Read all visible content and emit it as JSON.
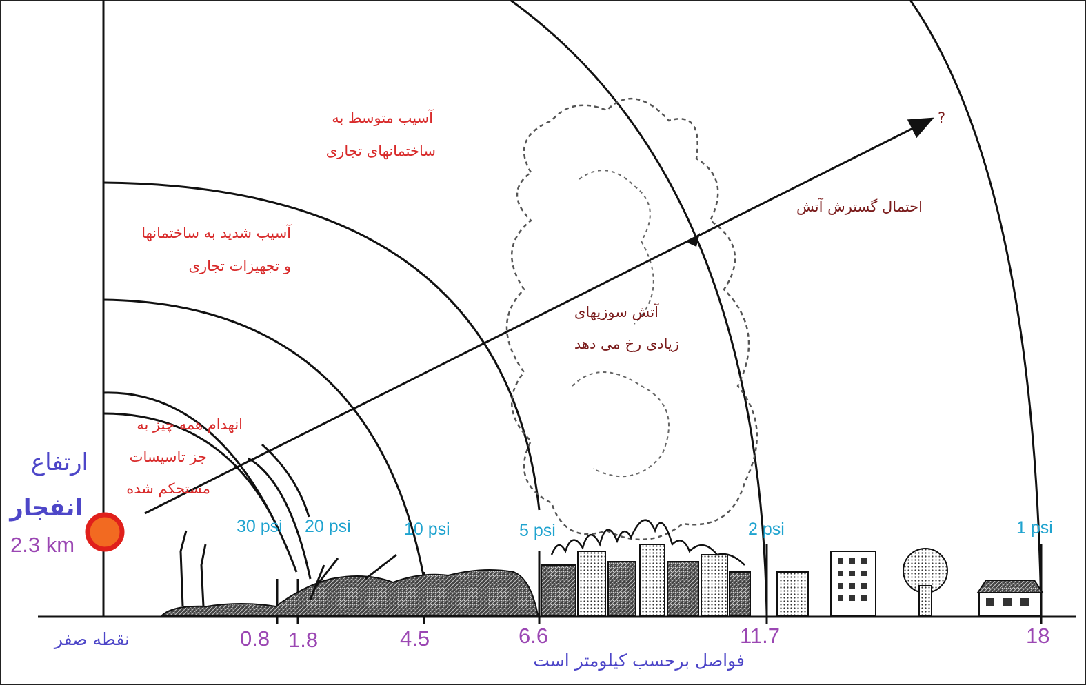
{
  "labels": {
    "moderate_damage": [
      "آسیب متوسط به",
      "ساختمانهای تجاری"
    ],
    "severe_damage": [
      "آسیب شدید به ساختمانها",
      "و تجهیزات تجاری"
    ],
    "total_destruction": [
      "انهدام همه چیز به",
      "جز تاسیسات",
      "مستحکم شده"
    ],
    "many_fires": [
      "آتش سوزیهای",
      "زیادی رخ می دهد"
    ],
    "fire_spread": "احتمال گسترش آتش",
    "question_mark": "?"
  },
  "burst": {
    "height_label": [
      "ارتفاع",
      "انفجار"
    ],
    "height_value": "2.3 km",
    "ground_zero": "نقطه صفر"
  },
  "pressure_labels": [
    "30 psi",
    "20 psi",
    "10 psi",
    "5 psi",
    "2 psi",
    "1 psi"
  ],
  "distance_labels": [
    "0.8",
    "1.8",
    "4.5",
    "6.6",
    "11.7",
    "18"
  ],
  "axis_caption": "فواصل برحسب کیلومتر است",
  "colors": {
    "red_text": "#d82a2a",
    "dark_red_text": "#7a1b1b",
    "psi_text": "#1fa3cf",
    "distance_text": "#9b47b3",
    "blue_text": "#4d46c8",
    "burst_fill": "#f26a21",
    "burst_ring": "#e0201b"
  }
}
